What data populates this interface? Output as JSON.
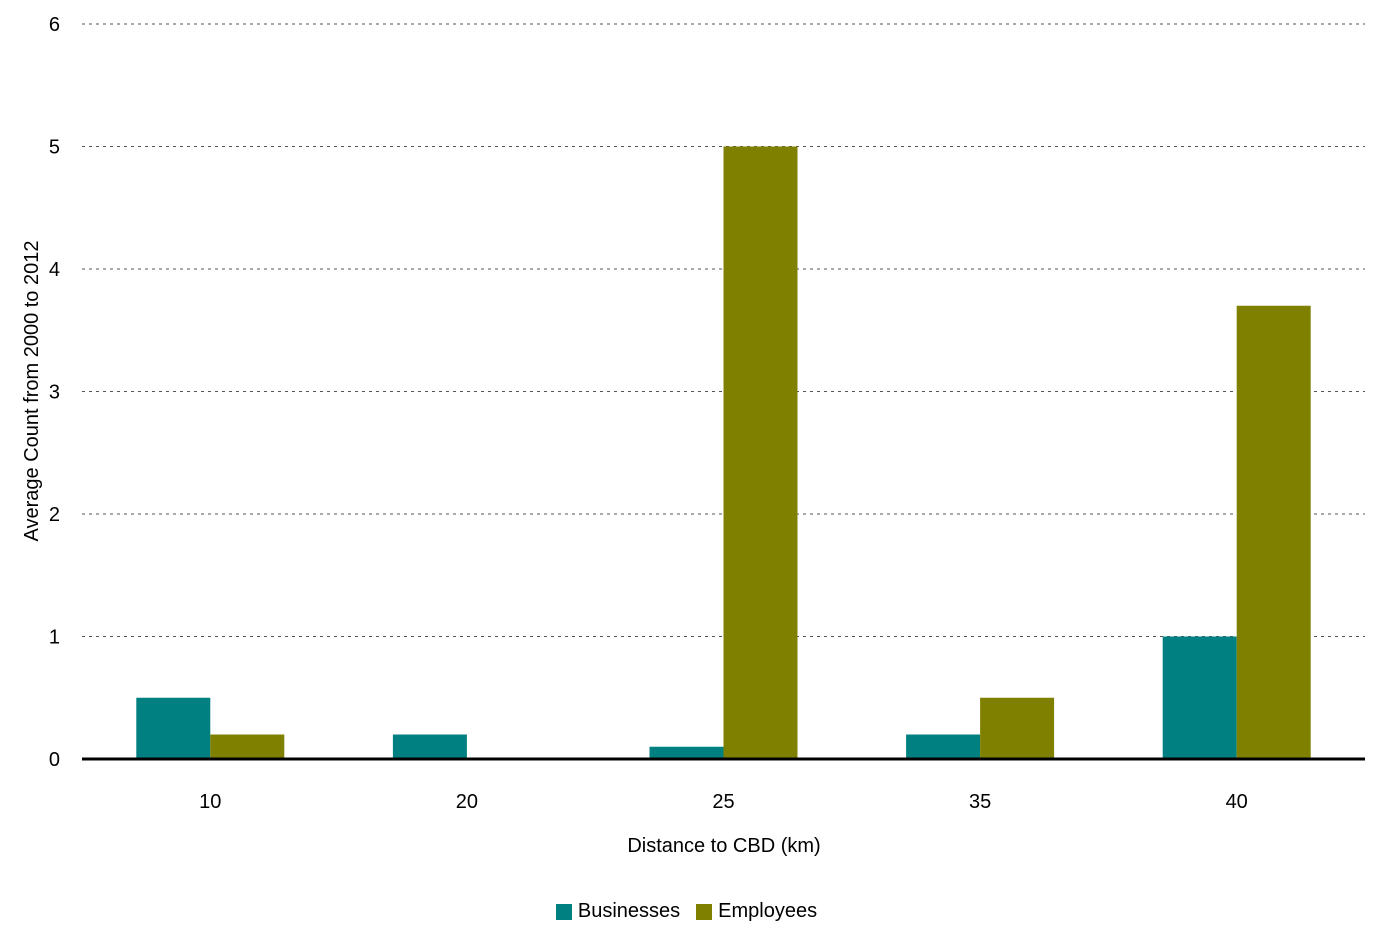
{
  "chart_data": {
    "type": "bar",
    "categories": [
      "10",
      "20",
      "25",
      "35",
      "40"
    ],
    "series": [
      {
        "name": "Businesses",
        "values": [
          0.5,
          0.2,
          0.1,
          0.2,
          1.0
        ],
        "color": "#008080"
      },
      {
        "name": "Employees",
        "values": [
          0.2,
          0.0,
          5.0,
          0.5,
          3.7
        ],
        "color": "#808000"
      }
    ],
    "title": "",
    "xlabel": "Distance to CBD (km)",
    "ylabel": "Average Count from 2000 to 2012",
    "ylim": [
      0,
      6
    ],
    "yticks": [
      0,
      1,
      2,
      3,
      4,
      5,
      6
    ],
    "grid": "horizontal dotted",
    "legend": "bottom-center"
  }
}
